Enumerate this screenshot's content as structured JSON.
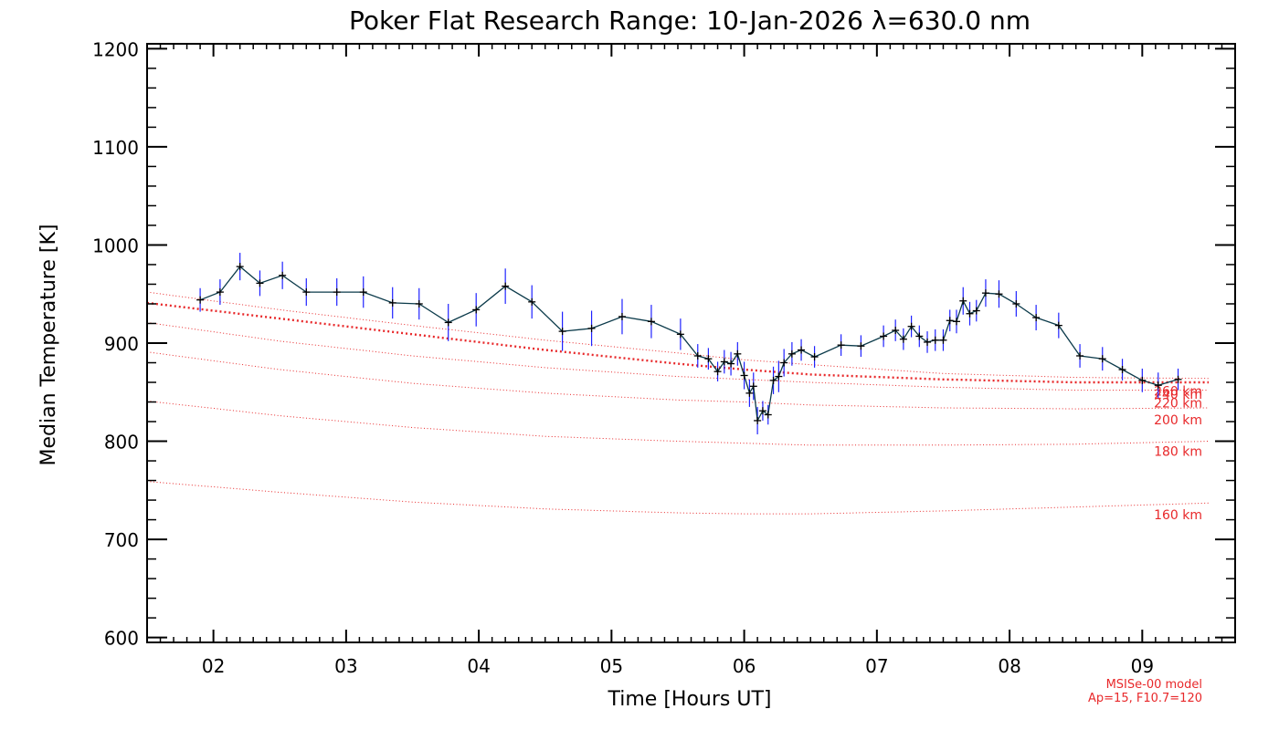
{
  "colors": {
    "data_line": "#0b3a4a",
    "error_bar": "#1f22ff",
    "model": "#e8282a",
    "axes": "#000000"
  },
  "chart_data": {
    "type": "line",
    "title": "Poker Flat Research Range: 10-Jan-2026 λ=630.0 nm",
    "xlabel": "Time [Hours UT]",
    "ylabel": "Median Temperature [K]",
    "xlim": [
      1.5,
      9.7
    ],
    "ylim": [
      595,
      1205
    ],
    "x_ticks": [
      2,
      3,
      4,
      5,
      6,
      7,
      8,
      9
    ],
    "x_tick_labels": [
      "02",
      "03",
      "04",
      "05",
      "06",
      "07",
      "08",
      "09"
    ],
    "y_ticks": [
      600,
      700,
      800,
      900,
      1000,
      1100,
      1200
    ],
    "y_tick_labels": [
      "600",
      "700",
      "800",
      "900",
      "1000",
      "1100",
      "1200"
    ],
    "series": [
      {
        "name": "Median Temperature",
        "x": [
          1.9,
          2.05,
          2.2,
          2.35,
          2.52,
          2.7,
          2.93,
          3.13,
          3.35,
          3.55,
          3.77,
          3.98,
          4.2,
          4.4,
          4.63,
          4.85,
          5.08,
          5.3,
          5.52,
          5.65,
          5.73,
          5.8,
          5.85,
          5.9,
          5.95,
          6.0,
          6.04,
          6.07,
          6.1,
          6.14,
          6.18,
          6.22,
          6.26,
          6.3,
          6.36,
          6.43,
          6.53,
          6.73,
          6.88,
          7.05,
          7.14,
          7.2,
          7.26,
          7.32,
          7.38,
          7.44,
          7.5,
          7.55,
          7.6,
          7.65,
          7.7,
          7.75,
          7.82,
          7.92,
          8.05,
          8.2,
          8.37,
          8.53,
          8.7,
          8.85,
          9.0,
          9.12,
          9.27
        ],
        "values": [
          944,
          952,
          978,
          961,
          969,
          952,
          952,
          952,
          941,
          940,
          921,
          934,
          958,
          942,
          912,
          915,
          927,
          922,
          909,
          887,
          884,
          871,
          881,
          879,
          889,
          867,
          849,
          856,
          821,
          831,
          827,
          862,
          866,
          880,
          889,
          893,
          886,
          898,
          897,
          907,
          913,
          904,
          917,
          907,
          901,
          903,
          903,
          923,
          922,
          943,
          930,
          933,
          951,
          950,
          940,
          926,
          918,
          887,
          884,
          873,
          862,
          857,
          863
        ],
        "errors": [
          12,
          13,
          14,
          13,
          14,
          14,
          14,
          16,
          16,
          16,
          19,
          17,
          18,
          17,
          20,
          18,
          18,
          17,
          16,
          12,
          11,
          10,
          12,
          12,
          12,
          14,
          14,
          14,
          14,
          10,
          10,
          14,
          16,
          14,
          12,
          11,
          11,
          11,
          11,
          11,
          11,
          11,
          11,
          11,
          11,
          11,
          11,
          11,
          12,
          14,
          12,
          11,
          14,
          14,
          13,
          13,
          13,
          12,
          12,
          11,
          12,
          13,
          11
        ]
      }
    ],
    "model_curves": [
      {
        "label": "160 km",
        "x": [
          1.5,
          2.5,
          3.5,
          4.5,
          5.5,
          6.0,
          6.5,
          7.5,
          8.5,
          9.5
        ],
        "values": [
          759,
          748,
          738,
          731,
          727,
          726,
          726,
          729,
          733,
          737
        ]
      },
      {
        "label": "180 km",
        "x": [
          1.5,
          2.5,
          3.5,
          4.5,
          5.5,
          6.0,
          6.5,
          7.5,
          8.5,
          9.5
        ],
        "values": [
          841,
          826,
          814,
          805,
          800,
          798,
          796,
          796,
          797,
          800
        ]
      },
      {
        "label": "200 km",
        "x": [
          1.5,
          2.5,
          3.5,
          4.5,
          5.5,
          6.0,
          6.5,
          7.5,
          8.5,
          9.5
        ],
        "values": [
          891,
          873,
          859,
          849,
          842,
          840,
          837,
          834,
          833,
          834
        ]
      },
      {
        "label": "220 km",
        "x": [
          1.5,
          2.5,
          3.5,
          4.5,
          5.5,
          6.0,
          6.5,
          7.5,
          8.5,
          9.5
        ],
        "values": [
          921,
          902,
          887,
          875,
          866,
          863,
          860,
          855,
          852,
          852
        ]
      },
      {
        "label": "240 km",
        "x": [
          1.5,
          2.5,
          3.5,
          4.5,
          5.5,
          6.0,
          6.5,
          7.5,
          8.5,
          9.5
        ],
        "values": [
          941,
          925,
          909,
          893,
          879,
          873,
          868,
          863,
          860,
          860
        ]
      },
      {
        "label": "260 km",
        "x": [
          1.5,
          2.5,
          3.5,
          4.5,
          5.5,
          6.0,
          6.5,
          7.5,
          8.5,
          9.5
        ],
        "values": [
          952,
          934,
          918,
          903,
          890,
          883,
          878,
          869,
          865,
          864
        ]
      }
    ],
    "model_label_values": [
      {
        "label": "160 km",
        "value": 725
      },
      {
        "label": "180 km",
        "value": 790
      },
      {
        "label": "200 km",
        "value": 822
      },
      {
        "label": "220 km",
        "value": 839
      },
      {
        "label": "240 km",
        "value": 848
      },
      {
        "label": "260 km",
        "value": 851
      }
    ],
    "annotations": [
      "MSISe-00 model",
      "Ap=15, F10.7=120"
    ]
  }
}
